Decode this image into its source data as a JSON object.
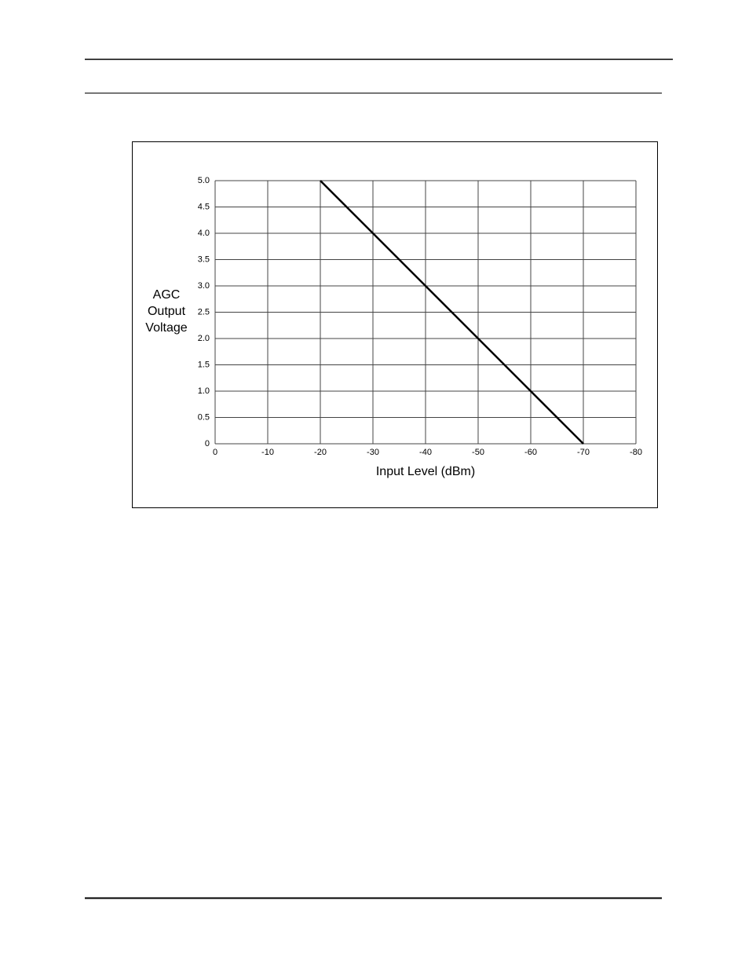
{
  "chart_data": {
    "type": "line",
    "x_label": "Input Level (dBm)",
    "y_label": [
      "AGC",
      "Output",
      "Voltage"
    ],
    "x": [
      -20,
      -70
    ],
    "series": [
      {
        "color": "#000000",
        "values": [
          5,
          0
        ]
      }
    ],
    "xlim": [
      0,
      -80
    ],
    "xticks": [
      0,
      -10,
      -20,
      -30,
      -40,
      -50,
      -60,
      -70,
      -80
    ],
    "ylim": [
      0,
      5
    ],
    "yticks": [
      0,
      0.5,
      {
        "value": 1,
        "label": "1.0"
      },
      1.5,
      {
        "value": 2,
        "label": "2.0"
      },
      2.5,
      {
        "value": 3,
        "label": "3.0"
      },
      3.5,
      {
        "value": 4,
        "label": "4.0"
      },
      4.5,
      {
        "value": 5,
        "label": "5.0"
      }
    ],
    "grid": true
  }
}
